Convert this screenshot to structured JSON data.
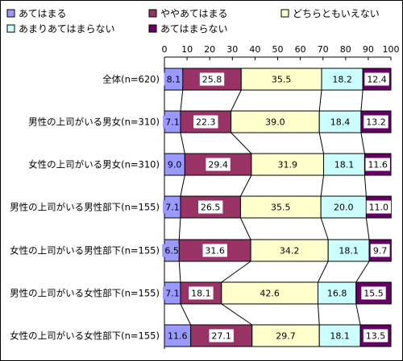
{
  "chart_data": {
    "type": "bar",
    "orientation": "horizontal",
    "stacked": true,
    "percent": true,
    "title": "",
    "xlabel": "",
    "ylabel": "",
    "xlim": [
      0,
      100
    ],
    "x_ticks": [
      0,
      10,
      20,
      30,
      40,
      50,
      60,
      70,
      80,
      90,
      100
    ],
    "grid": false,
    "legend_position": "top",
    "categories": [
      "全体(n=620)",
      "男性の上司がいる男女(n=310)",
      "女性の上司がいる男女(n=310)",
      "男性の上司がいる男性部下(n=155)",
      "女性の上司がいる男性部下(n=155)",
      "男性の上司がいる女性部下(n=155)",
      "女性の上司がいる女性部下(n=155)"
    ],
    "series": [
      {
        "name": "あてはまる",
        "color": "#9999ff",
        "values": [
          8.1,
          7.1,
          9.0,
          7.1,
          6.5,
          7.1,
          11.6
        ]
      },
      {
        "name": "ややあてはまる",
        "color": "#993366",
        "values": [
          25.8,
          22.3,
          29.4,
          26.5,
          31.6,
          18.1,
          27.1
        ]
      },
      {
        "name": "どちらともいえない",
        "color": "#ffffcc",
        "values": [
          35.5,
          39.0,
          31.9,
          35.5,
          34.2,
          42.6,
          29.7
        ]
      },
      {
        "name": "あまりあてはまらない",
        "color": "#ccffff",
        "values": [
          18.2,
          18.4,
          18.1,
          20.0,
          18.1,
          16.8,
          18.1
        ]
      },
      {
        "name": "あてはまらない",
        "color": "#660066",
        "values": [
          12.4,
          13.2,
          11.6,
          11.0,
          9.7,
          15.5,
          13.5
        ]
      }
    ]
  }
}
